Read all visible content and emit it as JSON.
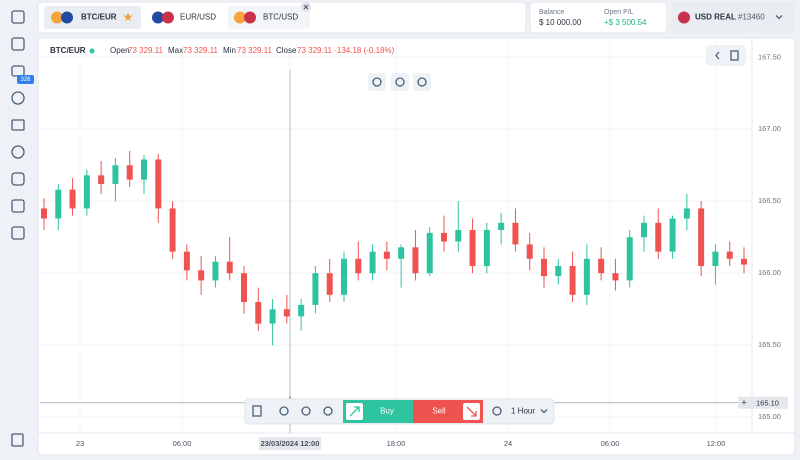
{
  "sidebar": {
    "badge": "326"
  },
  "tabs": [
    "BTC/EUR",
    "EUR/USD",
    "BTC/USD"
  ],
  "account": {
    "balance_label": "Balance",
    "balance": "$ 10 000.00",
    "pl_label": "Open P/L",
    "pl": "+$ 3 500.54",
    "currency": "USD REAL",
    "id": "#13460"
  },
  "chart_header": {
    "symbol": "BTC/EUR",
    "open_label": "Open",
    "open": "73 329.11",
    "max_label": "Max",
    "max": "73 329.11",
    "min_label": "Min",
    "min": "73 329.11",
    "close_label": "Close",
    "close": "73 329.11 -134.18 (-0.18%)"
  },
  "toolbar": {
    "buy": "Buy",
    "sell": "Sell",
    "interval": "1 Hour"
  },
  "chart_data": {
    "type": "candlestick",
    "up_color": "#2ec4a0",
    "down_color": "#ef5350",
    "open": [
      166.45,
      166.38,
      166.58,
      166.45,
      166.68,
      166.62,
      166.75,
      166.65,
      166.79,
      166.45,
      166.15,
      166.02,
      165.95,
      166.08,
      166.0,
      165.8,
      165.65,
      165.75,
      165.7,
      165.78,
      166.0,
      165.85,
      166.1,
      166.0,
      166.15,
      166.1,
      166.18,
      166.0,
      166.28,
      166.22,
      166.3,
      166.05,
      166.3,
      166.35,
      166.2,
      166.1,
      165.98,
      166.05,
      165.85,
      166.1,
      166.0,
      165.95,
      166.25,
      166.35,
      166.15,
      166.38,
      166.45,
      166.05,
      166.15,
      166.1
    ],
    "high": [
      166.52,
      166.62,
      166.66,
      166.72,
      166.78,
      166.8,
      166.85,
      166.82,
      166.83,
      166.5,
      166.2,
      166.12,
      166.12,
      166.25,
      166.05,
      165.9,
      165.82,
      165.85,
      165.82,
      166.05,
      166.1,
      166.15,
      166.22,
      166.2,
      166.22,
      166.2,
      166.3,
      166.32,
      166.4,
      166.5,
      166.38,
      166.35,
      166.42,
      166.45,
      166.28,
      166.18,
      166.1,
      166.15,
      166.2,
      166.18,
      166.1,
      166.3,
      166.4,
      166.45,
      166.4,
      166.55,
      166.5,
      166.2,
      166.22,
      166.18
    ],
    "low": [
      166.3,
      166.3,
      166.4,
      166.4,
      166.55,
      166.5,
      166.6,
      166.55,
      166.35,
      166.1,
      165.95,
      165.85,
      165.9,
      165.95,
      165.72,
      165.6,
      165.5,
      165.65,
      165.6,
      165.72,
      165.8,
      165.8,
      165.95,
      165.95,
      166.02,
      165.9,
      165.95,
      165.98,
      166.15,
      166.15,
      166.0,
      166.0,
      166.2,
      166.15,
      166.02,
      165.9,
      165.92,
      165.8,
      165.78,
      165.95,
      165.88,
      165.9,
      166.15,
      166.1,
      166.1,
      166.3,
      165.98,
      165.92,
      166.05,
      166.0
    ],
    "close": [
      166.38,
      166.58,
      166.45,
      166.68,
      166.62,
      166.75,
      166.65,
      166.79,
      166.45,
      166.15,
      166.02,
      165.95,
      166.08,
      166.0,
      165.8,
      165.65,
      165.75,
      165.7,
      165.78,
      166.0,
      165.85,
      166.1,
      166.0,
      166.15,
      166.1,
      166.18,
      166.0,
      166.28,
      166.22,
      166.3,
      166.05,
      166.3,
      166.35,
      166.2,
      166.1,
      165.98,
      166.05,
      165.85,
      166.1,
      166.0,
      165.95,
      166.25,
      166.35,
      166.15,
      166.38,
      166.45,
      166.05,
      166.15,
      166.1,
      166.06
    ],
    "ylim": [
      164.89,
      167.62
    ],
    "yticks": [
      {
        "value": 167.5,
        "label": "167.50"
      },
      {
        "value": 167,
        "label": "167.00"
      },
      {
        "value": 166.5,
        "label": "166.50"
      },
      {
        "value": 166,
        "label": "166.00"
      },
      {
        "value": 165.5,
        "label": "165.50"
      },
      {
        "value": 165,
        "label": "165.00"
      }
    ],
    "xlabels": [
      "23",
      "06:00",
      "23/03/2024 12:00",
      "18:00",
      "24",
      "06:00",
      "12:00"
    ],
    "crosshair": {
      "value": 165.1,
      "label": "165.10"
    },
    "grid": true
  }
}
